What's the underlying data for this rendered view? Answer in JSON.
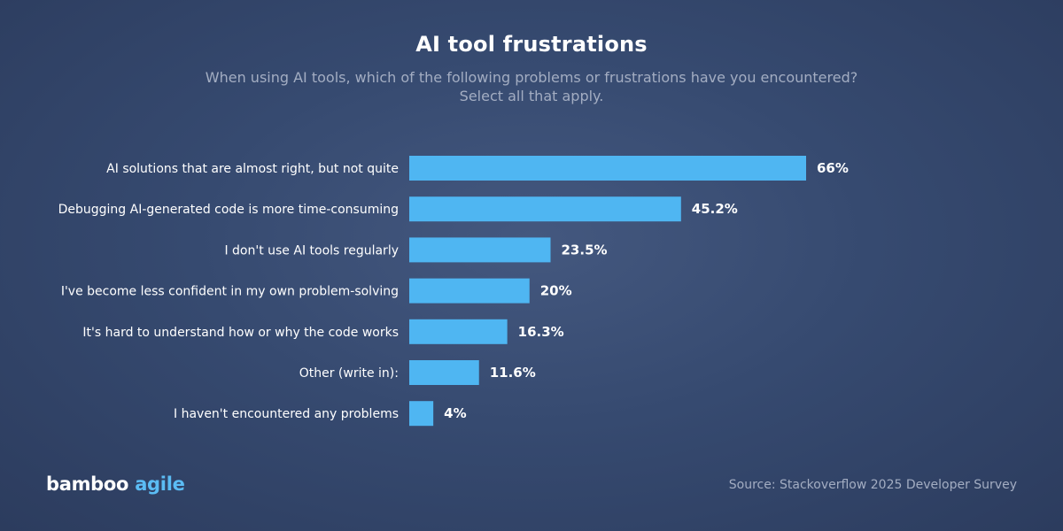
{
  "title": "AI tool frustrations",
  "subtitle_line1": "When using AI tools, which of the following problems or frustrations have you encountered?",
  "subtitle_line2": "Select all that apply.",
  "brand": {
    "part1": "bamboo",
    "part2": "agile"
  },
  "source": "Source: Stackoverflow 2025 Developer Survey",
  "colors": {
    "bar": "#4fb6f2",
    "label": "#ffffff",
    "brand_accent": "#5bbcf4"
  },
  "chart_data": {
    "type": "bar",
    "orientation": "horizontal",
    "categories": [
      "AI solutions that are almost right, but not quite",
      "Debugging AI-generated code is more time-consuming",
      "I don't use AI tools regularly",
      "I've become less confident in my own problem-solving",
      "It's hard to understand how or why the code works",
      "Other (write in):",
      "I haven't encountered any problems"
    ],
    "values": [
      66,
      45.2,
      23.5,
      20,
      16.3,
      11.6,
      4
    ],
    "value_labels": [
      "66%",
      "45.2%",
      "23.5%",
      "20%",
      "16.3%",
      "11.6%",
      "4%"
    ],
    "title": "AI tool frustrations",
    "xlim": [
      0,
      66
    ],
    "grid": false,
    "legend": "none"
  }
}
